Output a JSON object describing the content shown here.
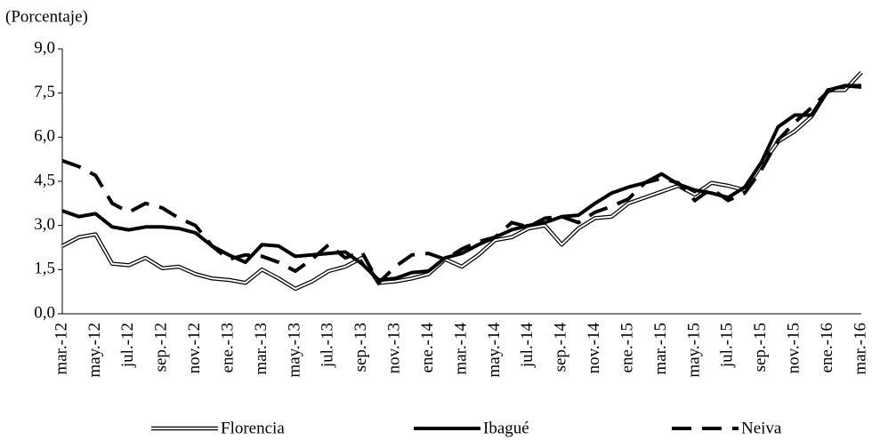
{
  "chart_data": {
    "type": "line",
    "y_axis_label": "(Porcentaje)",
    "categories": [
      "mar.-12",
      null,
      "may.-12",
      null,
      "jul.-12",
      null,
      "sep.-12",
      null,
      "nov.-12",
      null,
      "ene.-13",
      null,
      "mar.-13",
      null,
      "may.-13",
      null,
      "jul.-13",
      null,
      "sep.-13",
      null,
      "nov.-13",
      null,
      "ene.-14",
      null,
      "mar.-14",
      null,
      "may.-14",
      null,
      "jul.-14",
      null,
      "sep.-14",
      null,
      "nov.-14",
      null,
      "ene.-15",
      null,
      "mar.-15",
      null,
      "may.-15",
      null,
      "jul.-15",
      null,
      "sep.-15",
      null,
      "nov.-15",
      null,
      "ene.-16",
      null,
      "mar.-16"
    ],
    "series": [
      {
        "name": "Florencia",
        "color": "#000000",
        "style": "double",
        "values": [
          2.3,
          2.6,
          2.7,
          1.7,
          1.65,
          1.9,
          1.55,
          1.6,
          1.35,
          1.2,
          1.15,
          1.05,
          1.5,
          1.2,
          0.85,
          1.1,
          1.45,
          1.6,
          1.9,
          1.05,
          1.1,
          1.2,
          1.35,
          1.85,
          1.6,
          2.0,
          2.5,
          2.6,
          2.9,
          3.0,
          2.35,
          2.9,
          3.25,
          3.3,
          3.75,
          3.95,
          4.15,
          4.35,
          4.05,
          4.45,
          4.35,
          4.2,
          5.05,
          5.85,
          6.2,
          6.7,
          7.6,
          7.6,
          8.2
        ]
      },
      {
        "name": "Ibagué",
        "color": "#000000",
        "style": "solid",
        "values": [
          3.5,
          3.3,
          3.4,
          2.95,
          2.85,
          2.95,
          2.95,
          2.9,
          2.75,
          2.3,
          2.0,
          1.75,
          2.35,
          2.3,
          1.95,
          2.0,
          2.05,
          2.1,
          1.7,
          1.15,
          1.2,
          1.4,
          1.45,
          1.9,
          2.05,
          2.35,
          2.6,
          2.85,
          3.0,
          3.1,
          3.3,
          3.35,
          3.75,
          4.1,
          4.3,
          4.45,
          4.75,
          4.4,
          4.2,
          4.1,
          3.95,
          4.3,
          5.15,
          6.35,
          6.75,
          6.75,
          7.6,
          7.75,
          7.75
        ]
      },
      {
        "name": "Neiva",
        "color": "#000000",
        "style": "dashed",
        "values": [
          5.2,
          5.0,
          4.7,
          3.75,
          3.45,
          3.75,
          3.6,
          3.25,
          3.0,
          2.3,
          1.85,
          2.0,
          1.95,
          1.75,
          1.45,
          1.85,
          2.35,
          1.9,
          2.1,
          1.05,
          1.6,
          2.0,
          2.05,
          1.85,
          2.2,
          2.45,
          2.6,
          3.1,
          2.95,
          3.25,
          3.3,
          3.1,
          3.45,
          3.65,
          3.9,
          4.45,
          4.6,
          4.45,
          3.85,
          4.25,
          3.85,
          4.1,
          4.9,
          5.9,
          6.5,
          7.0,
          7.55,
          7.75,
          7.7
        ]
      }
    ],
    "ylim": [
      0,
      9
    ],
    "yticks": [
      {
        "value": 0,
        "label": "0,0"
      },
      {
        "value": 1.5,
        "label": "1,5"
      },
      {
        "value": 3,
        "label": "3,0"
      },
      {
        "value": 4.5,
        "label": "4,5"
      },
      {
        "value": 6,
        "label": "6,0"
      },
      {
        "value": 7.5,
        "label": "7,5"
      },
      {
        "value": 9,
        "label": "9,0"
      }
    ],
    "legend": "bottom"
  }
}
